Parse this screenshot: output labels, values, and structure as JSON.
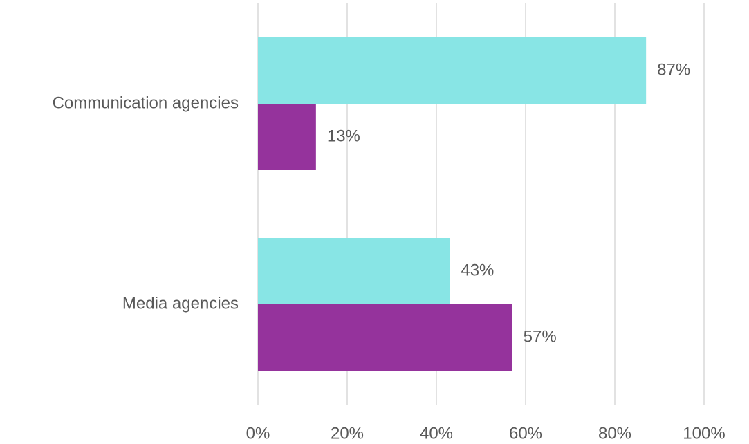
{
  "chart_data": {
    "type": "hbar",
    "categories": [
      "Communication agencies",
      "Media agencies"
    ],
    "series": [
      {
        "color": "#88e5e5",
        "values": [
          87,
          43
        ],
        "value_labels": [
          "87%",
          "43%"
        ]
      },
      {
        "color": "#95339c",
        "values": [
          13,
          57
        ],
        "value_labels": [
          "13%",
          "57%"
        ]
      }
    ],
    "xlim": [
      0,
      100
    ],
    "xticks": [
      {
        "value": 0,
        "label": "0%"
      },
      {
        "value": 20,
        "label": "20%"
      },
      {
        "value": 40,
        "label": "40%"
      },
      {
        "value": 60,
        "label": "60%"
      },
      {
        "value": 80,
        "label": "80%"
      },
      {
        "value": 100,
        "label": "100%"
      }
    ],
    "grid": true
  }
}
